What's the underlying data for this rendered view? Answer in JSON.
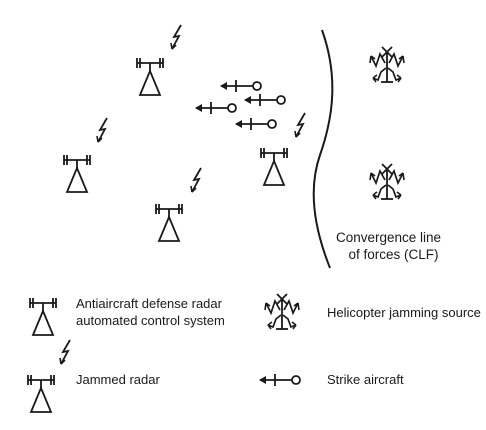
{
  "clf": {
    "line1": "Convergence line",
    "line2": "of forces (CLF)"
  },
  "legend": {
    "radar_acs_line1": "Antiaircraft defense radar",
    "radar_acs_line2": "automated control system",
    "helicopter_jamming": "Helicopter jamming source",
    "jammed_radar": "Jammed radar",
    "strike_aircraft": "Strike aircraft"
  },
  "icons": {
    "radar": "radar-antenna-icon",
    "jamming": "lightning-bolt-icon",
    "helicopter": "helicopter-jammer-icon",
    "aircraft": "strike-aircraft-arrow-icon"
  },
  "colors": {
    "ink": "#1a1a1a",
    "background": "#ffffff"
  }
}
